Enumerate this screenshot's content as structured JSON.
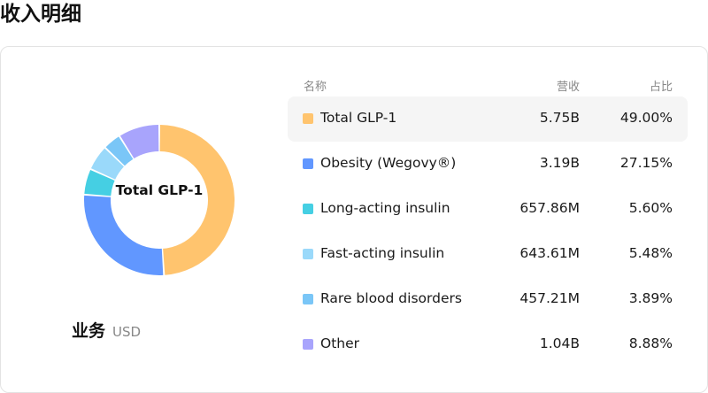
{
  "page": {
    "title": "收入明细"
  },
  "donut": {
    "center_label": "Total GLP-1",
    "segment_label": "业务",
    "currency": "USD"
  },
  "table": {
    "headers": {
      "name": "名称",
      "revenue": "营收",
      "share": "占比"
    },
    "rows": [
      {
        "name": "Total GLP-1",
        "revenue": "5.75B",
        "share": "49.00%",
        "color": "#FFC46E"
      },
      {
        "name": "Obesity (Wegovy®)",
        "revenue": "3.19B",
        "share": "27.15%",
        "color": "#6197FF"
      },
      {
        "name": "Long-acting insulin",
        "revenue": "657.86M",
        "share": "5.60%",
        "color": "#45CFE3"
      },
      {
        "name": "Fast-acting insulin",
        "revenue": "643.61M",
        "share": "5.48%",
        "color": "#9AD9FA"
      },
      {
        "name": "Rare blood disorders",
        "revenue": "457.21M",
        "share": "3.89%",
        "color": "#7AC6F7"
      },
      {
        "name": "Other",
        "revenue": "1.04B",
        "share": "8.88%",
        "color": "#A8A4FC"
      }
    ]
  },
  "chart_data": {
    "type": "pie",
    "categories": [
      "Total GLP-1",
      "Obesity (Wegovy®)",
      "Long-acting insulin",
      "Fast-acting insulin",
      "Rare blood disorders",
      "Other"
    ],
    "values": [
      49.0,
      27.15,
      5.6,
      5.48,
      3.89,
      8.88
    ],
    "unit": "%",
    "colors": [
      "#FFC46E",
      "#6197FF",
      "#45CFE3",
      "#9AD9FA",
      "#7AC6F7",
      "#A8A4FC"
    ]
  }
}
